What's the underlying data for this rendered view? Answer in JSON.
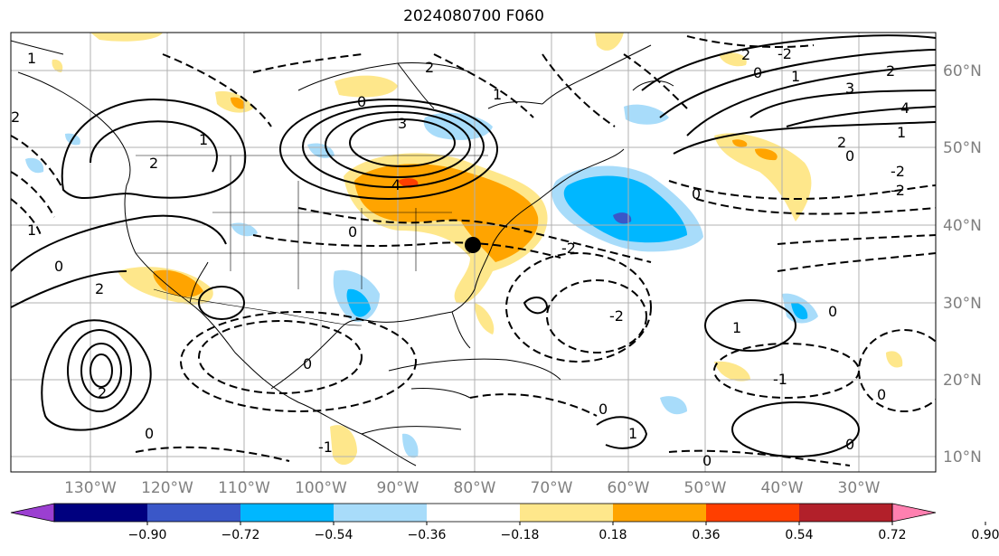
{
  "title": "2024080700 F060",
  "map": {
    "lon_range": [
      -140,
      -20
    ],
    "lat_range": [
      7,
      65
    ],
    "lon_ticks": [
      "130°W",
      "120°W",
      "110°W",
      "100°W",
      "90°W",
      "80°W",
      "70°W",
      "60°W",
      "50°W",
      "40°W",
      "30°W"
    ],
    "lat_ticks": [
      "10°N",
      "20°N",
      "30°N",
      "40°N",
      "50°N",
      "60°N"
    ],
    "gridlines": true,
    "marker": {
      "lon": -80,
      "lat": 37,
      "color": "#000000"
    }
  },
  "contour_labels": [
    "2",
    "3",
    "4",
    "1",
    "0",
    "-1",
    "-2"
  ],
  "colorbar": {
    "ticks": [
      "−0.90",
      "−0.72",
      "−0.54",
      "−0.36",
      "−0.18",
      "0.18",
      "0.36",
      "0.54",
      "0.72",
      "0.90"
    ],
    "colors": [
      "#9b3fd1",
      "#00007f",
      "#3a57c8",
      "#00b7ff",
      "#a8dcfa",
      "#ffffff",
      "#fee78b",
      "#ffa400",
      "#ff3f00",
      "#b2202a",
      "#ff80b0"
    ]
  }
}
